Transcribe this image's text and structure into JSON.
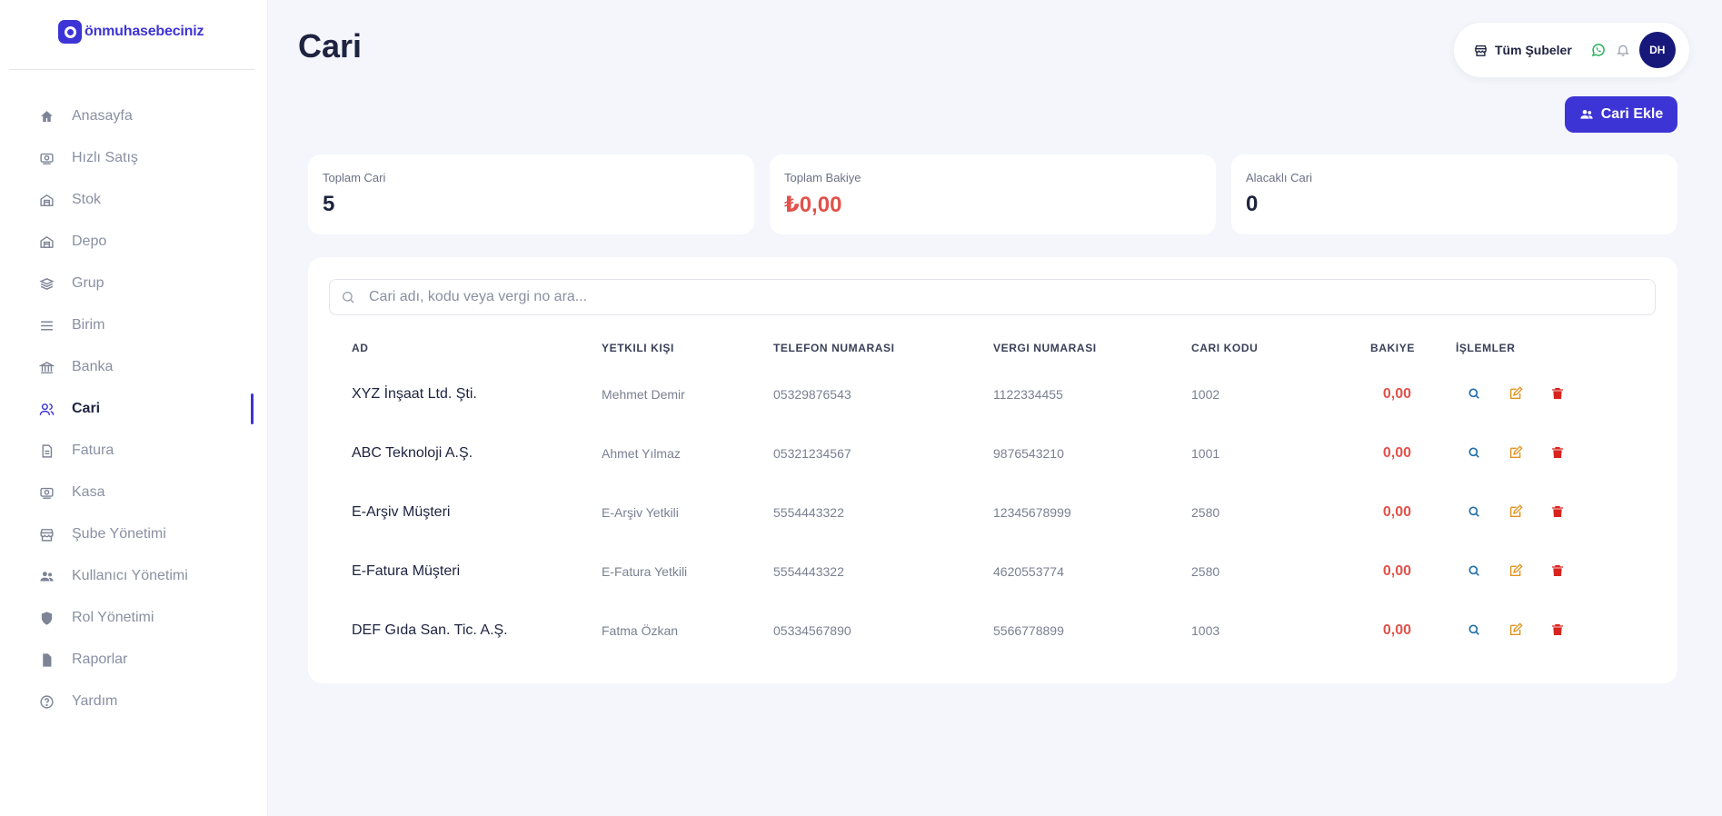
{
  "brand": {
    "name": "önmuhasebeciniz"
  },
  "sidebar": {
    "items": [
      {
        "label": "Anasayfa",
        "icon": "home-icon",
        "active": false
      },
      {
        "label": "Hızlı Satış",
        "icon": "quick-sale-icon",
        "active": false
      },
      {
        "label": "Stok",
        "icon": "stock-icon",
        "active": false
      },
      {
        "label": "Depo",
        "icon": "warehouse-icon",
        "active": false
      },
      {
        "label": "Grup",
        "icon": "layers-icon",
        "active": false
      },
      {
        "label": "Birim",
        "icon": "menu-lines-icon",
        "active": false
      },
      {
        "label": "Banka",
        "icon": "bank-icon",
        "active": false
      },
      {
        "label": "Cari",
        "icon": "users-icon",
        "active": true
      },
      {
        "label": "Fatura",
        "icon": "invoice-icon",
        "active": false
      },
      {
        "label": "Kasa",
        "icon": "cash-icon",
        "active": false
      },
      {
        "label": "Şube Yönetimi",
        "icon": "store-icon",
        "active": false
      },
      {
        "label": "Kullanıcı Yönetimi",
        "icon": "user-group-icon",
        "active": false
      },
      {
        "label": "Rol Yönetimi",
        "icon": "shield-icon",
        "active": false
      },
      {
        "label": "Raporlar",
        "icon": "document-icon",
        "active": false
      },
      {
        "label": "Yardım",
        "icon": "help-icon",
        "active": false
      }
    ]
  },
  "header": {
    "title": "Cari",
    "branch_label": "Tüm Şubeler",
    "avatar_initials": "DH",
    "add_button_label": "Cari Ekle"
  },
  "stats": [
    {
      "label": "Toplam Cari",
      "value": "5",
      "negative": false
    },
    {
      "label": "Toplam Bakiye",
      "value": "₺0,00",
      "negative": true
    },
    {
      "label": "Alacaklı Cari",
      "value": "0",
      "negative": false
    }
  ],
  "search": {
    "placeholder": "Cari adı, kodu veya vergi no ara...",
    "value": ""
  },
  "table": {
    "columns": [
      "AD",
      "YETKILI KIŞI",
      "TELEFON NUMARASI",
      "VERGI NUMARASI",
      "CARI KODU",
      "BAKIYE",
      "İŞLEMLER"
    ],
    "rows": [
      {
        "ad": "XYZ İnşaat Ltd. Şti.",
        "yetkili": "Mehmet Demir",
        "telefon": "05329876543",
        "vergi": "1122334455",
        "kod": "1002",
        "bakiye": "0,00"
      },
      {
        "ad": "ABC Teknoloji A.Ş.",
        "yetkili": "Ahmet Yılmaz",
        "telefon": "05321234567",
        "vergi": "9876543210",
        "kod": "1001",
        "bakiye": "0,00"
      },
      {
        "ad": "E-Arşiv Müşteri",
        "yetkili": "E-Arşiv Yetkili",
        "telefon": "5554443322",
        "vergi": "12345678999",
        "kod": "2580",
        "bakiye": "0,00"
      },
      {
        "ad": "E-Fatura Müşteri",
        "yetkili": "E-Fatura Yetkili",
        "telefon": "5554443322",
        "vergi": "4620553774",
        "kod": "2580",
        "bakiye": "0,00"
      },
      {
        "ad": "DEF Gıda San. Tic. A.Ş.",
        "yetkili": "Fatma Özkan",
        "telefon": "05334567890",
        "vergi": "5566778899",
        "kod": "1003",
        "bakiye": "0,00"
      }
    ]
  },
  "colors": {
    "accent": "#3d34d6",
    "negative": "#e0524b",
    "view": "#1f6ea8",
    "edit": "#e0921b",
    "delete": "#d8241f"
  }
}
